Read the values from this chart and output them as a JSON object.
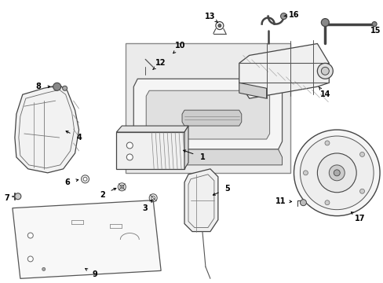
{
  "background_color": "#ffffff",
  "fig_width": 4.89,
  "fig_height": 3.6,
  "dpi": 100,
  "label_fontsize": 7.0,
  "label_color": "#000000",
  "line_color": "#333333",
  "line_width": 0.8
}
